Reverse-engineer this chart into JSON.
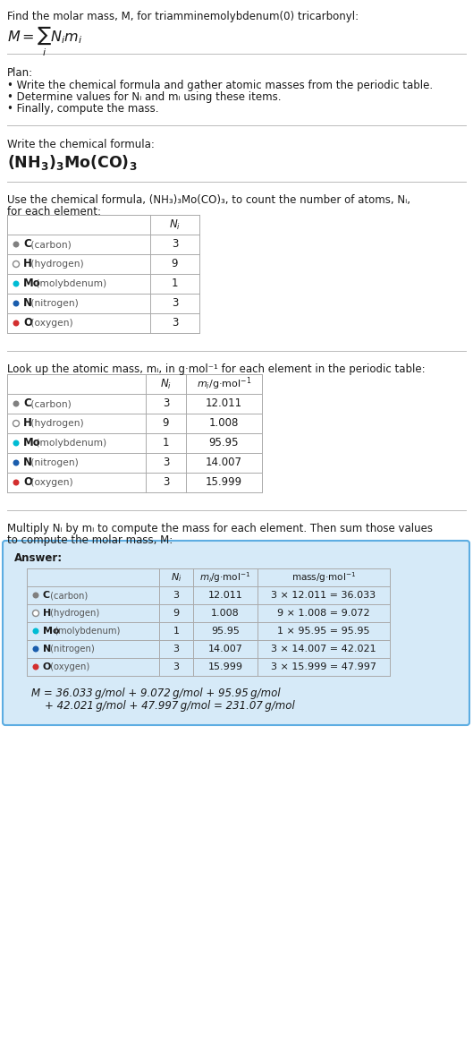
{
  "title_line1": "Find the molar mass, M, for triamminemolybdenum(0) tricarbonyl:",
  "bg_color": "#ffffff",
  "plan_header": "Plan:",
  "plan_bullets": [
    "• Write the chemical formula and gather atomic masses from the periodic table.",
    "• Determine values for Nᵢ and mᵢ using these items.",
    "• Finally, compute the mass."
  ],
  "formula_header": "Write the chemical formula:",
  "table1_header_part1": "Use the chemical formula, (NH₃)₃Mo(CO)₃, to count the number of atoms, Nᵢ,",
  "table1_header_part2": "for each element:",
  "table2_header": "Look up the atomic mass, mᵢ, in g·mol⁻¹ for each element in the periodic table:",
  "table3_header_part1": "Multiply Nᵢ by mᵢ to compute the mass for each element. Then sum those values",
  "table3_header_part2": "to compute the molar mass, M:",
  "answer_label": "Answer:",
  "elements": [
    "C (carbon)",
    "H (hydrogen)",
    "Mo (molybdenum)",
    "N (nitrogen)",
    "O (oxygen)"
  ],
  "element_symbols": [
    "C",
    "H",
    "Mo",
    "N",
    "O"
  ],
  "dot_colors": [
    "#808080",
    "#ffffff",
    "#00bcd4",
    "#1a5dad",
    "#d32f2f"
  ],
  "dot_filled": [
    true,
    false,
    true,
    true,
    true
  ],
  "dot_edge_colors": [
    "#808080",
    "#888888",
    "#00bcd4",
    "#1a5dad",
    "#d32f2f"
  ],
  "N_i": [
    3,
    9,
    1,
    3,
    3
  ],
  "m_i": [
    "12.011",
    "1.008",
    "95.95",
    "14.007",
    "15.999"
  ],
  "mass_exprs": [
    "3 × 12.011 = 36.033",
    "9 × 1.008 = 9.072",
    "1 × 95.95 = 95.95",
    "3 × 14.007 = 42.021",
    "3 × 15.999 = 47.997"
  ],
  "final_line1": "M = 36.033 g/mol + 9.072 g/mol + 95.95 g/mol",
  "final_line2": "+ 42.021 g/mol + 47.997 g/mol = 231.07 g/mol",
  "answer_box_color": "#d6eaf8",
  "answer_border_color": "#5dade2",
  "text_color": "#1a1a1a",
  "fs": 8.5,
  "fs_small": 7.5,
  "fs_formula": 11.5,
  "divider_color": "#bbbbbb",
  "table_line_color": "#aaaaaa"
}
